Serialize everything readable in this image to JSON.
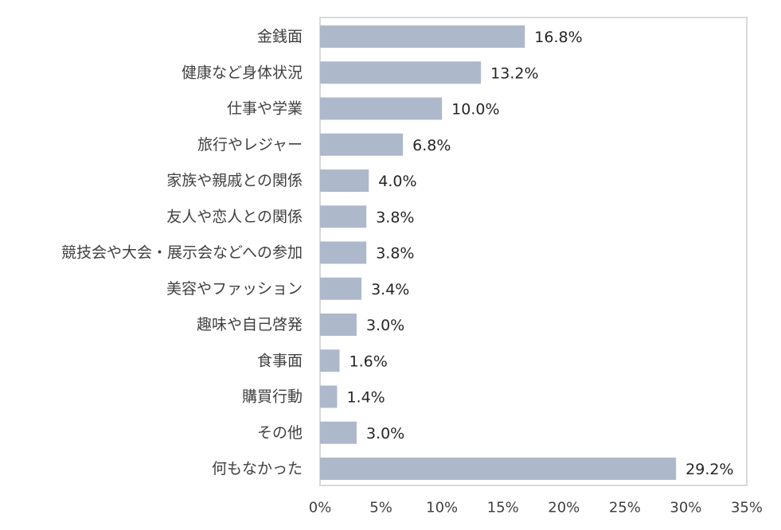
{
  "chart_data": {
    "type": "bar",
    "orientation": "horizontal",
    "categories": [
      "金銭面",
      "健康など身体状況",
      "仕事や学業",
      "旅行やレジャー",
      "家族や親戚との関係",
      "友人や恋人との関係",
      "競技会や大会・展示会などへの参加",
      "美容やファッション",
      "趣味や自己啓発",
      "食事面",
      "購買行動",
      "その他",
      "何もなかった"
    ],
    "values": [
      16.8,
      13.2,
      10.0,
      6.8,
      4.0,
      3.8,
      3.8,
      3.4,
      3.0,
      1.6,
      1.4,
      3.0,
      29.2
    ],
    "value_labels": [
      "16.8%",
      "13.2%",
      "10.0%",
      "6.8%",
      "4.0%",
      "3.8%",
      "3.8%",
      "3.4%",
      "3.0%",
      "1.6%",
      "1.4%",
      "3.0%",
      "29.2%"
    ],
    "xlim": [
      0,
      35
    ],
    "xticks": [
      0,
      5,
      10,
      15,
      20,
      25,
      30,
      35
    ],
    "xtick_labels": [
      "0%",
      "5%",
      "10%",
      "15%",
      "20%",
      "25%",
      "30%",
      "35%"
    ],
    "bar_color": "#adb9ca",
    "frame_color": "#d9d9d9",
    "grid": false,
    "legend": "none"
  }
}
